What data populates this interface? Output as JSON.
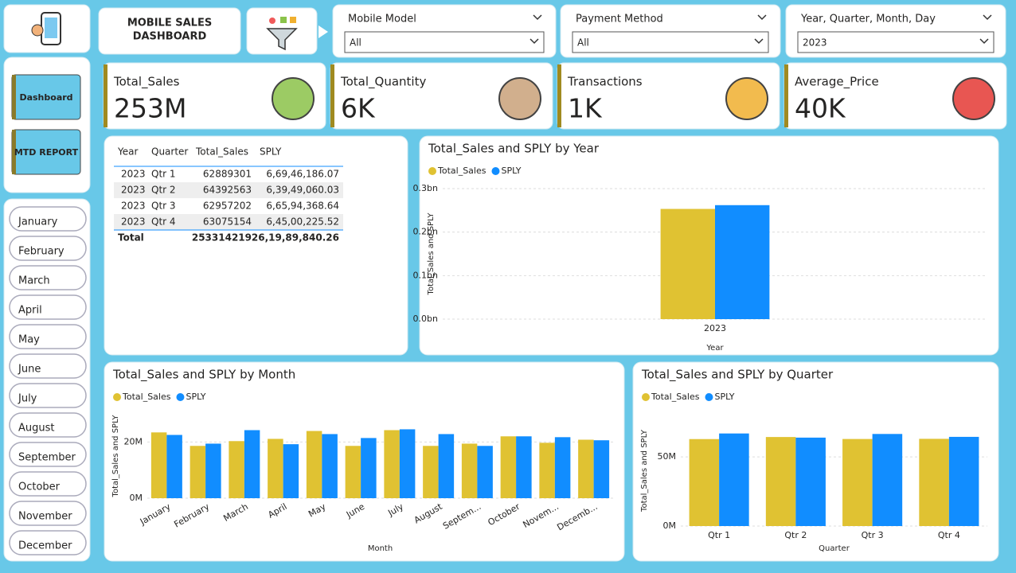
{
  "header": {
    "title_lines": [
      "MOBILE SALES",
      "DASHBOARD"
    ]
  },
  "nav": [
    "Dashboard",
    "MTD REPORT"
  ],
  "months": [
    "January",
    "February",
    "March",
    "April",
    "May",
    "June",
    "July",
    "August",
    "September",
    "October",
    "November",
    "December"
  ],
  "filters": [
    {
      "label": "Mobile Model",
      "value": "All"
    },
    {
      "label": "Payment Method",
      "value": "All"
    },
    {
      "label": "Year, Quarter, Month, Day",
      "value": "2023"
    }
  ],
  "cards": [
    {
      "label": "Total_Sales",
      "value": "253M"
    },
    {
      "label": "Total_Quantity",
      "value": "6K"
    },
    {
      "label": "Transactions",
      "value": "1K"
    },
    {
      "label": "Average_Price",
      "value": "40K"
    }
  ],
  "table": {
    "columns": [
      "Year",
      "Quarter",
      "Total_Sales",
      "SPLY"
    ],
    "rows": [
      [
        "2023",
        "Qtr 1",
        "62889301",
        "6,69,46,186.07"
      ],
      [
        "2023",
        "Qtr 2",
        "64392563",
        "6,39,49,060.03"
      ],
      [
        "2023",
        "Qtr 3",
        "62957202",
        "6,65,94,368.64"
      ],
      [
        "2023",
        "Qtr 4",
        "63075154",
        "6,45,00,225.52"
      ]
    ],
    "total": [
      "Total",
      "253314219",
      "26,19,89,840.26"
    ]
  },
  "charts": [
    {
      "type": "bar",
      "title": "Total_Sales and SPLY by Year",
      "y_label": "Total_Sales and SPLY",
      "x_label": "Year",
      "categories": [
        "2023"
      ],
      "series": [
        {
          "name": "Total_Sales",
          "color": "#e0c232",
          "values": [
            253314219
          ]
        },
        {
          "name": "SPLY",
          "color": "#118dff",
          "values": [
            261989840.26
          ]
        }
      ],
      "ylim": [
        0,
        300000000
      ],
      "yticks": [
        {
          "value": 0,
          "label": "0.0bn"
        },
        {
          "value": 100000000,
          "label": "0.1bn"
        },
        {
          "value": 200000000,
          "label": "0.2bn"
        },
        {
          "value": 300000000,
          "label": "0.3bn"
        }
      ],
      "grid": true
    },
    {
      "type": "bar",
      "title": "Total_Sales and SPLY by Month",
      "y_label": "Total_Sales and SPLY",
      "x_label": "Month",
      "categories": [
        "January",
        "February",
        "March",
        "April",
        "May",
        "June",
        "July",
        "August",
        "Septem...",
        "October",
        "Novem...",
        "Decemb..."
      ],
      "series": [
        {
          "name": "Total_Sales",
          "color": "#e0c232",
          "values": [
            23400000,
            18600000,
            20300000,
            21100000,
            23900000,
            18600000,
            24200000,
            18600000,
            19400000,
            22000000,
            19700000,
            20800000
          ]
        },
        {
          "name": "SPLY",
          "color": "#118dff",
          "values": [
            22500000,
            19400000,
            24200000,
            19200000,
            22800000,
            21400000,
            24500000,
            22800000,
            18600000,
            22000000,
            21700000,
            20600000
          ]
        }
      ],
      "ylim": [
        0,
        30000000
      ],
      "yticks": [
        {
          "value": 0,
          "label": "0M"
        },
        {
          "value": 20000000,
          "label": "20M"
        }
      ],
      "grid": true
    },
    {
      "type": "bar",
      "title": "Total_Sales and SPLY by Quarter",
      "y_label": "Total_Sales and SPLY",
      "x_label": "Quarter",
      "categories": [
        "Qtr 1",
        "Qtr 2",
        "Qtr 3",
        "Qtr 4"
      ],
      "series": [
        {
          "name": "Total_Sales",
          "color": "#e0c232",
          "values": [
            62889301,
            64392563,
            62957202,
            63075154
          ]
        },
        {
          "name": "SPLY",
          "color": "#118dff",
          "values": [
            66946186.07,
            63949060.03,
            66594368.64,
            64500225.52
          ]
        }
      ],
      "ylim": [
        0,
        80000000
      ],
      "yticks": [
        {
          "value": 0,
          "label": "0M"
        },
        {
          "value": 50000000,
          "label": "50M"
        }
      ],
      "grid": true
    }
  ]
}
